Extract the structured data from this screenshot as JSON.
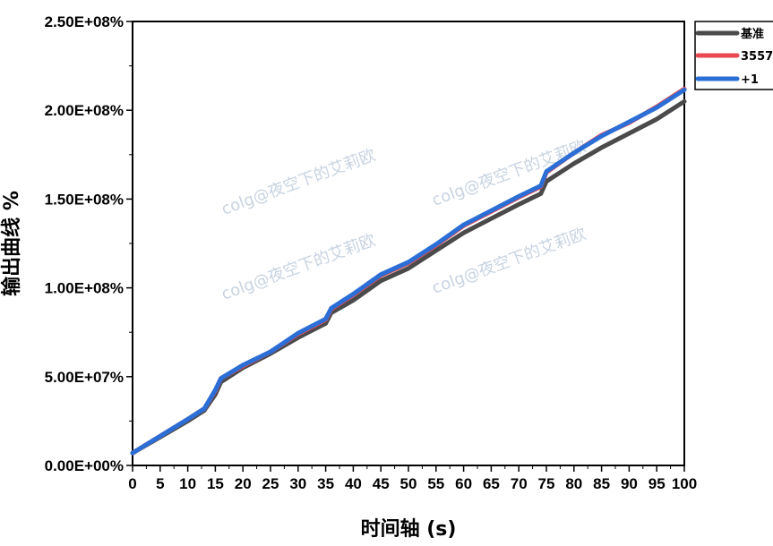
{
  "chart_data": {
    "type": "line",
    "xlabel": "时间轴 (s)",
    "ylabel": "输出曲线 %",
    "xlim": [
      0,
      100
    ],
    "ylim": [
      0,
      250000000
    ],
    "x_ticks": [
      "0",
      "5",
      "10",
      "15",
      "20",
      "25",
      "30",
      "35",
      "40",
      "45",
      "50",
      "55",
      "60",
      "65",
      "70",
      "75",
      "80",
      "85",
      "90",
      "95",
      "100"
    ],
    "y_ticks": [
      "0.00E+00%",
      "5.00E+07%",
      "1.00E+08%",
      "1.50E+08%",
      "2.00E+08%",
      "2.50E+08%"
    ],
    "grid": false,
    "legend_position": "top-right-outside",
    "watermark": "colg@夜空下的艾莉欧",
    "series": [
      {
        "name": "基准",
        "color": "#4a4a4a",
        "x": [
          0,
          5,
          10,
          13,
          15,
          16,
          20,
          25,
          30,
          35,
          36,
          40,
          45,
          50,
          55,
          60,
          65,
          70,
          74,
          75,
          80,
          85,
          90,
          95,
          100
        ],
        "y": [
          7000000,
          16000000,
          25000000,
          31000000,
          40000000,
          47000000,
          55000000,
          63000000,
          72000000,
          80000000,
          86000000,
          93000000,
          104000000,
          111000000,
          121000000,
          131000000,
          139000000,
          147000000,
          153000000,
          160000000,
          170000000,
          179000000,
          187000000,
          195000000,
          205000000
        ]
      },
      {
        "name": "3557",
        "color": "#e8484f",
        "x": [
          0,
          5,
          10,
          13,
          15,
          16,
          20,
          25,
          30,
          35,
          36,
          40,
          45,
          50,
          55,
          60,
          65,
          70,
          74,
          75,
          80,
          85,
          90,
          95,
          100
        ],
        "y": [
          7000000,
          16500000,
          26000000,
          32000000,
          42000000,
          49000000,
          56000000,
          64000000,
          74000000,
          82000000,
          88000000,
          96000000,
          107000000,
          114000000,
          124000000,
          135000000,
          143000000,
          151000000,
          157000000,
          165000000,
          176000000,
          186000000,
          193000000,
          202000000,
          212000000
        ]
      },
      {
        "name": "+1",
        "color": "#2a6ed6",
        "x": [
          0,
          5,
          10,
          13,
          15,
          16,
          20,
          25,
          30,
          35,
          36,
          40,
          45,
          50,
          55,
          60,
          65,
          70,
          74,
          75,
          80,
          85,
          90,
          95,
          100
        ],
        "y": [
          7000000,
          16500000,
          26000000,
          32000000,
          42500000,
          49000000,
          56500000,
          64000000,
          74500000,
          82500000,
          88500000,
          96500000,
          107500000,
          114500000,
          124500000,
          135500000,
          143500000,
          151500000,
          157500000,
          165500000,
          176000000,
          185500000,
          193500000,
          201500000,
          211500000
        ]
      }
    ]
  }
}
